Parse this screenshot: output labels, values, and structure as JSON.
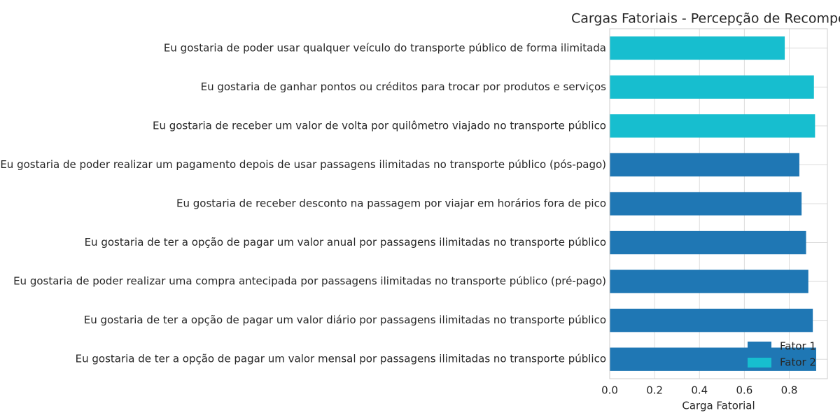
{
  "chart_data": {
    "type": "bar",
    "orientation": "horizontal",
    "title": "Cargas Fatoriais - Percepção de Recompensas",
    "xlabel": "Carga Fatorial",
    "ylabel": "",
    "xlim": [
      0.0,
      0.97
    ],
    "xticks": [
      "0.0",
      "0.2",
      "0.4",
      "0.6",
      "0.8"
    ],
    "grid": true,
    "legend_position": "bottom-right",
    "categories": [
      "Eu gostaria de poder usar qualquer veículo do transporte público de forma ilimitada",
      "Eu gostaria de ganhar pontos ou créditos para trocar por produtos e serviços",
      "Eu gostaria de receber um valor de volta por quilômetro viajado no transporte público",
      "Eu gostaria de poder realizar um pagamento depois de usar passagens ilimitadas no transporte público (pós-pago)",
      "Eu gostaria de receber desconto na passagem por viajar em horários fora de pico",
      "Eu gostaria de ter a opção de pagar um valor anual por passagens ilimitadas no transporte público",
      "Eu gostaria de poder realizar uma compra antecipada por passagens ilimitadas no transporte público (pré-pago)",
      "Eu gostaria de ter a opção de pagar um valor diário por passagens ilimitadas no transporte público",
      "Eu gostaria de ter a opção de pagar um valor mensal por passagens ilimitadas no transporte público"
    ],
    "values": [
      0.78,
      0.91,
      0.915,
      0.845,
      0.855,
      0.875,
      0.885,
      0.905,
      0.92
    ],
    "factor": [
      2,
      2,
      2,
      1,
      1,
      1,
      1,
      1,
      1
    ],
    "series": [
      {
        "name": "Fator 1",
        "color": "#1f77b4"
      },
      {
        "name": "Fator 2",
        "color": "#17becf"
      }
    ]
  }
}
